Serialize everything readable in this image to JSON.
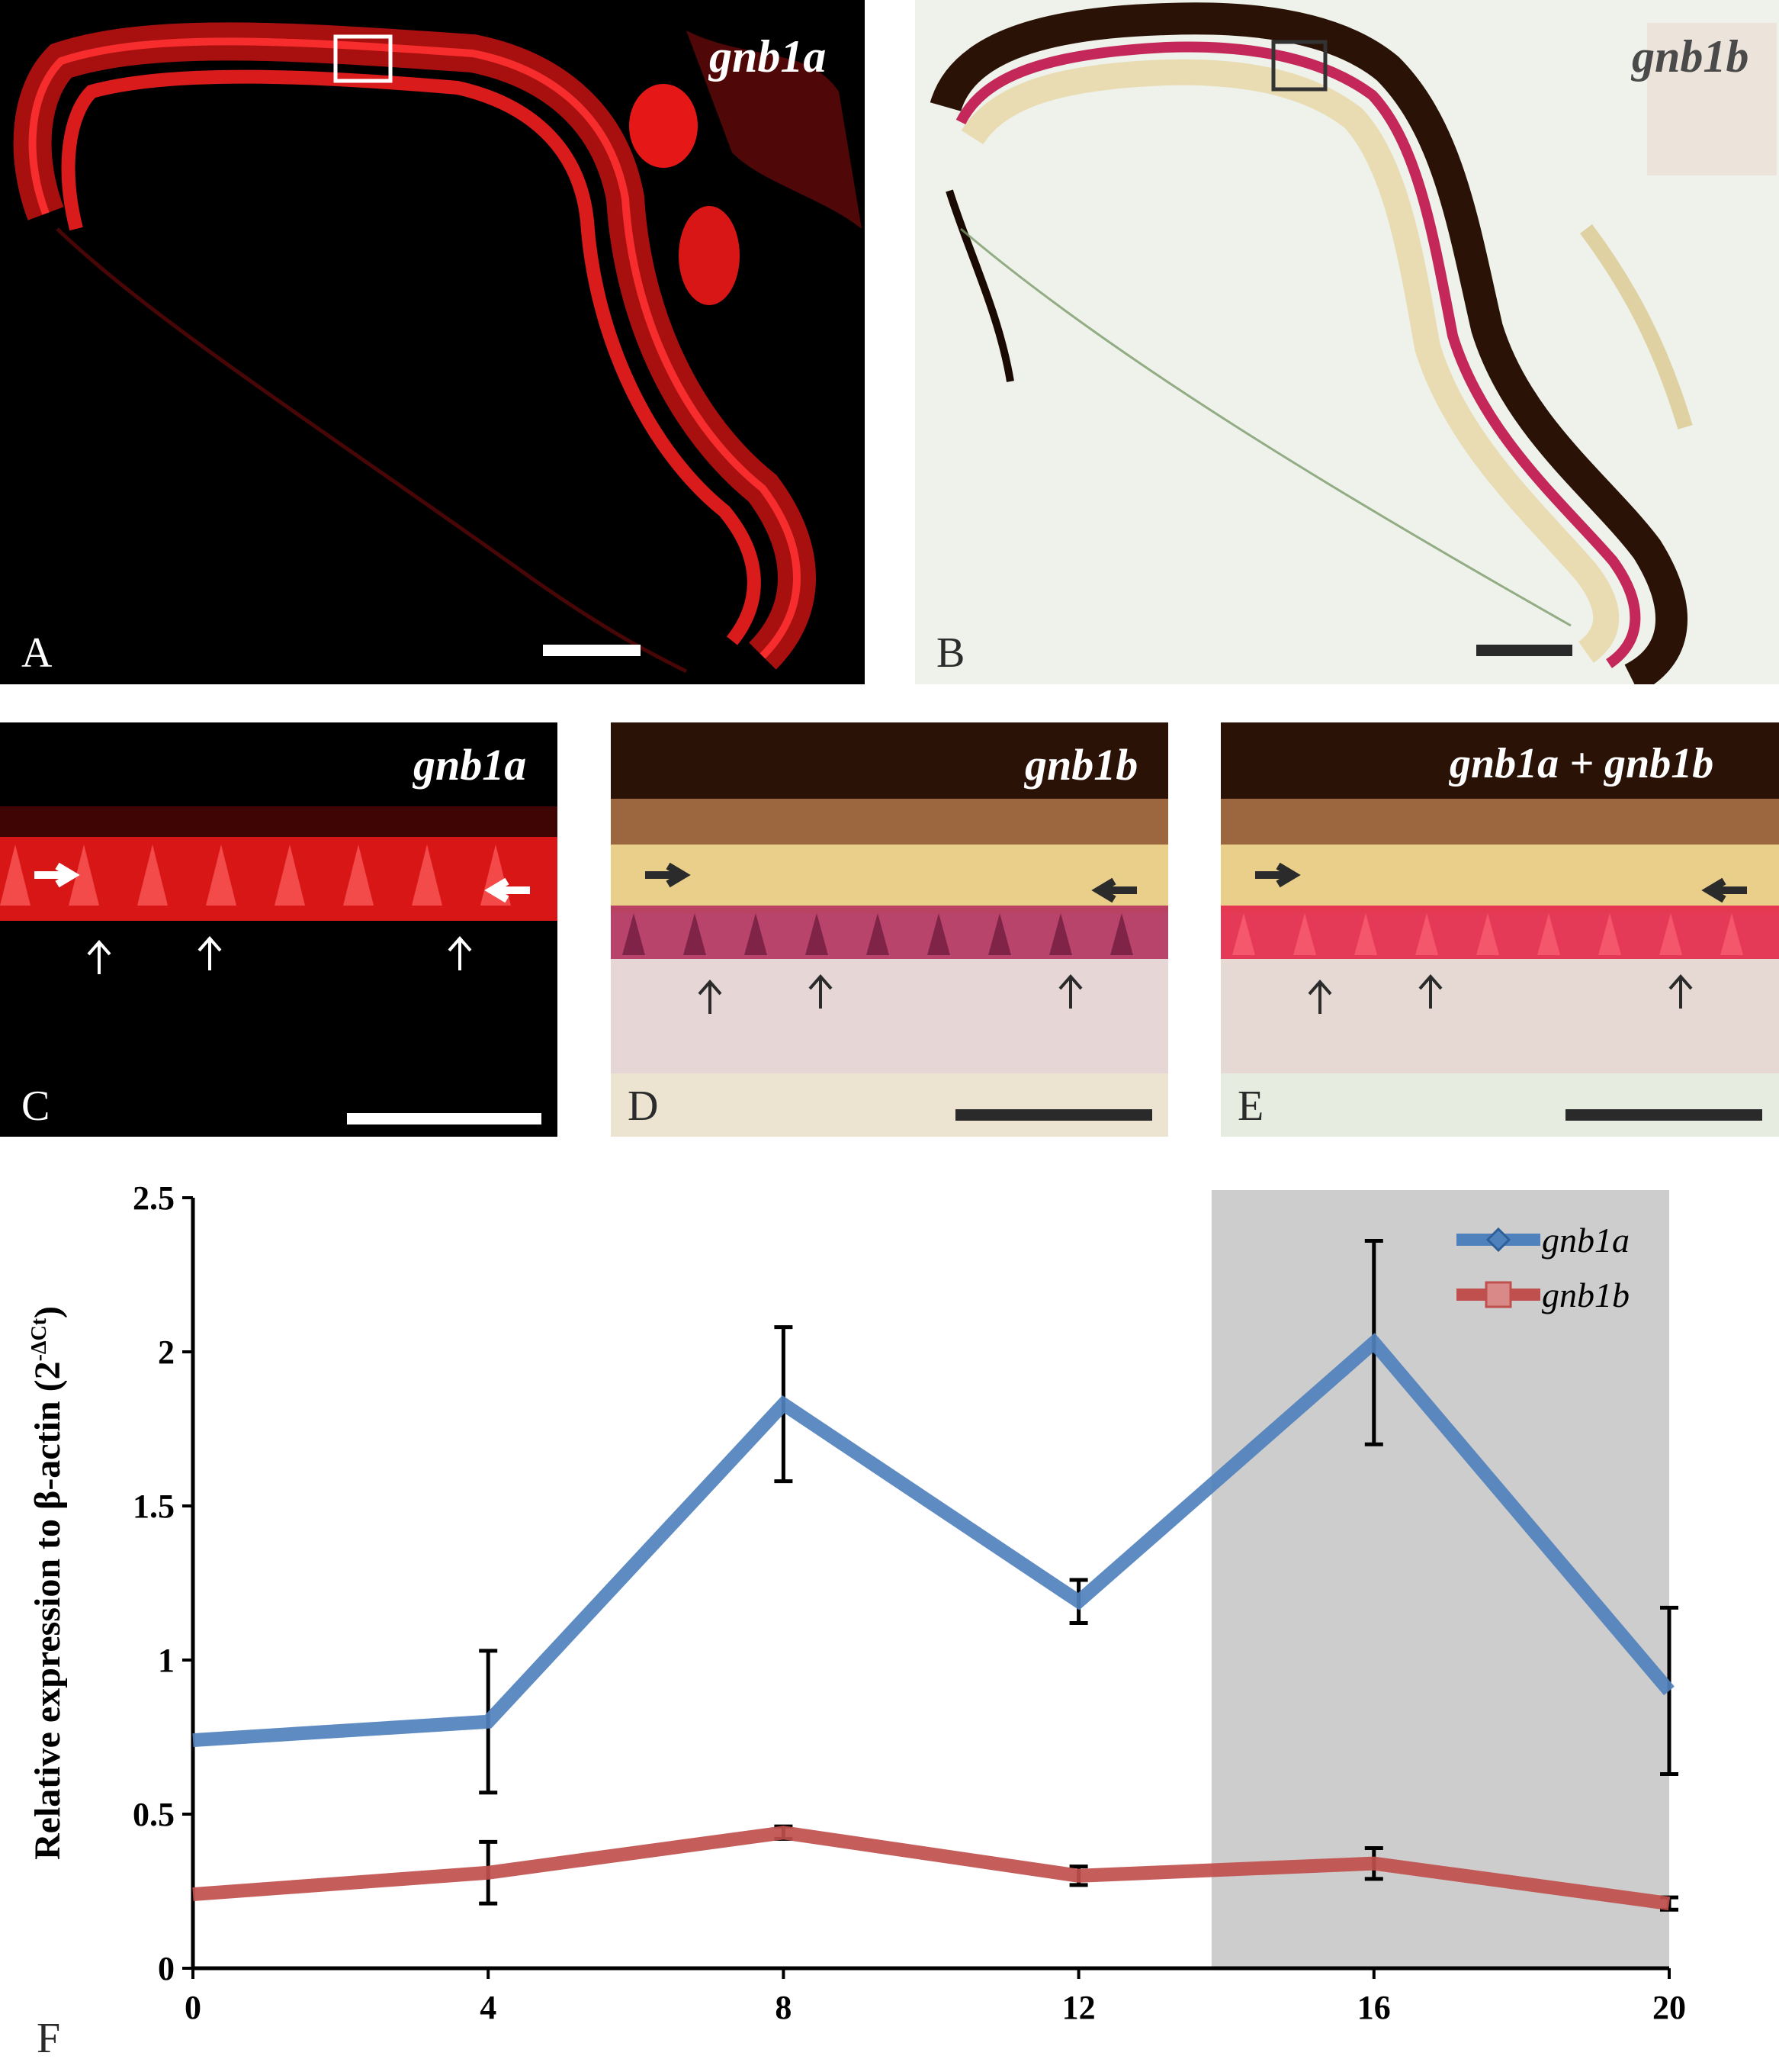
{
  "figure": {
    "panel_a": {
      "letter": "A",
      "gene": "gnb1a"
    },
    "panel_b": {
      "letter": "B",
      "gene": "gnb1b"
    },
    "panel_c": {
      "letter": "C",
      "gene": "gnb1a"
    },
    "panel_d": {
      "letter": "D",
      "gene": "gnb1b"
    },
    "panel_e": {
      "letter": "E",
      "gene": "gnb1a + gnb1b"
    },
    "panel_f": {
      "letter": "F"
    }
  },
  "colors": {
    "fluor_bg": "#000000",
    "fluor_signal": "#ff1a1a",
    "brightfield_bg": "#eef2ea",
    "pigment": "#2a1206",
    "stain": "#c4285a",
    "series_a": "#4f81bd",
    "series_b": "#c0504d",
    "dark_phase": "#cdcdcd"
  },
  "chart_data": {
    "type": "line",
    "ylabel": "Relative expression to β-actin (2",
    "ylabel_sup": "-ΔCt",
    "ylabel_end": ")",
    "x": [
      0,
      4,
      8,
      12,
      16,
      20
    ],
    "xlim": [
      0,
      20
    ],
    "ylim": [
      0,
      2.5
    ],
    "yticks": [
      "0",
      "0.5",
      "1",
      "1.5",
      "2",
      "2.5"
    ],
    "xticks": [
      "0",
      "4",
      "8",
      "12",
      "16",
      "20"
    ],
    "shaded_region": [
      13.8,
      20
    ],
    "legend_position": "top-right",
    "series": [
      {
        "name": "gnb1a",
        "marker": "diamond",
        "values": [
          0.74,
          0.8,
          1.83,
          1.19,
          2.03,
          0.9
        ],
        "errors": [
          0.0,
          0.23,
          0.25,
          0.07,
          0.33,
          0.27
        ]
      },
      {
        "name": "gnb1b",
        "marker": "square",
        "values": [
          0.24,
          0.31,
          0.44,
          0.3,
          0.34,
          0.21
        ],
        "errors": [
          0.0,
          0.1,
          0.02,
          0.03,
          0.05,
          0.02
        ]
      }
    ]
  }
}
